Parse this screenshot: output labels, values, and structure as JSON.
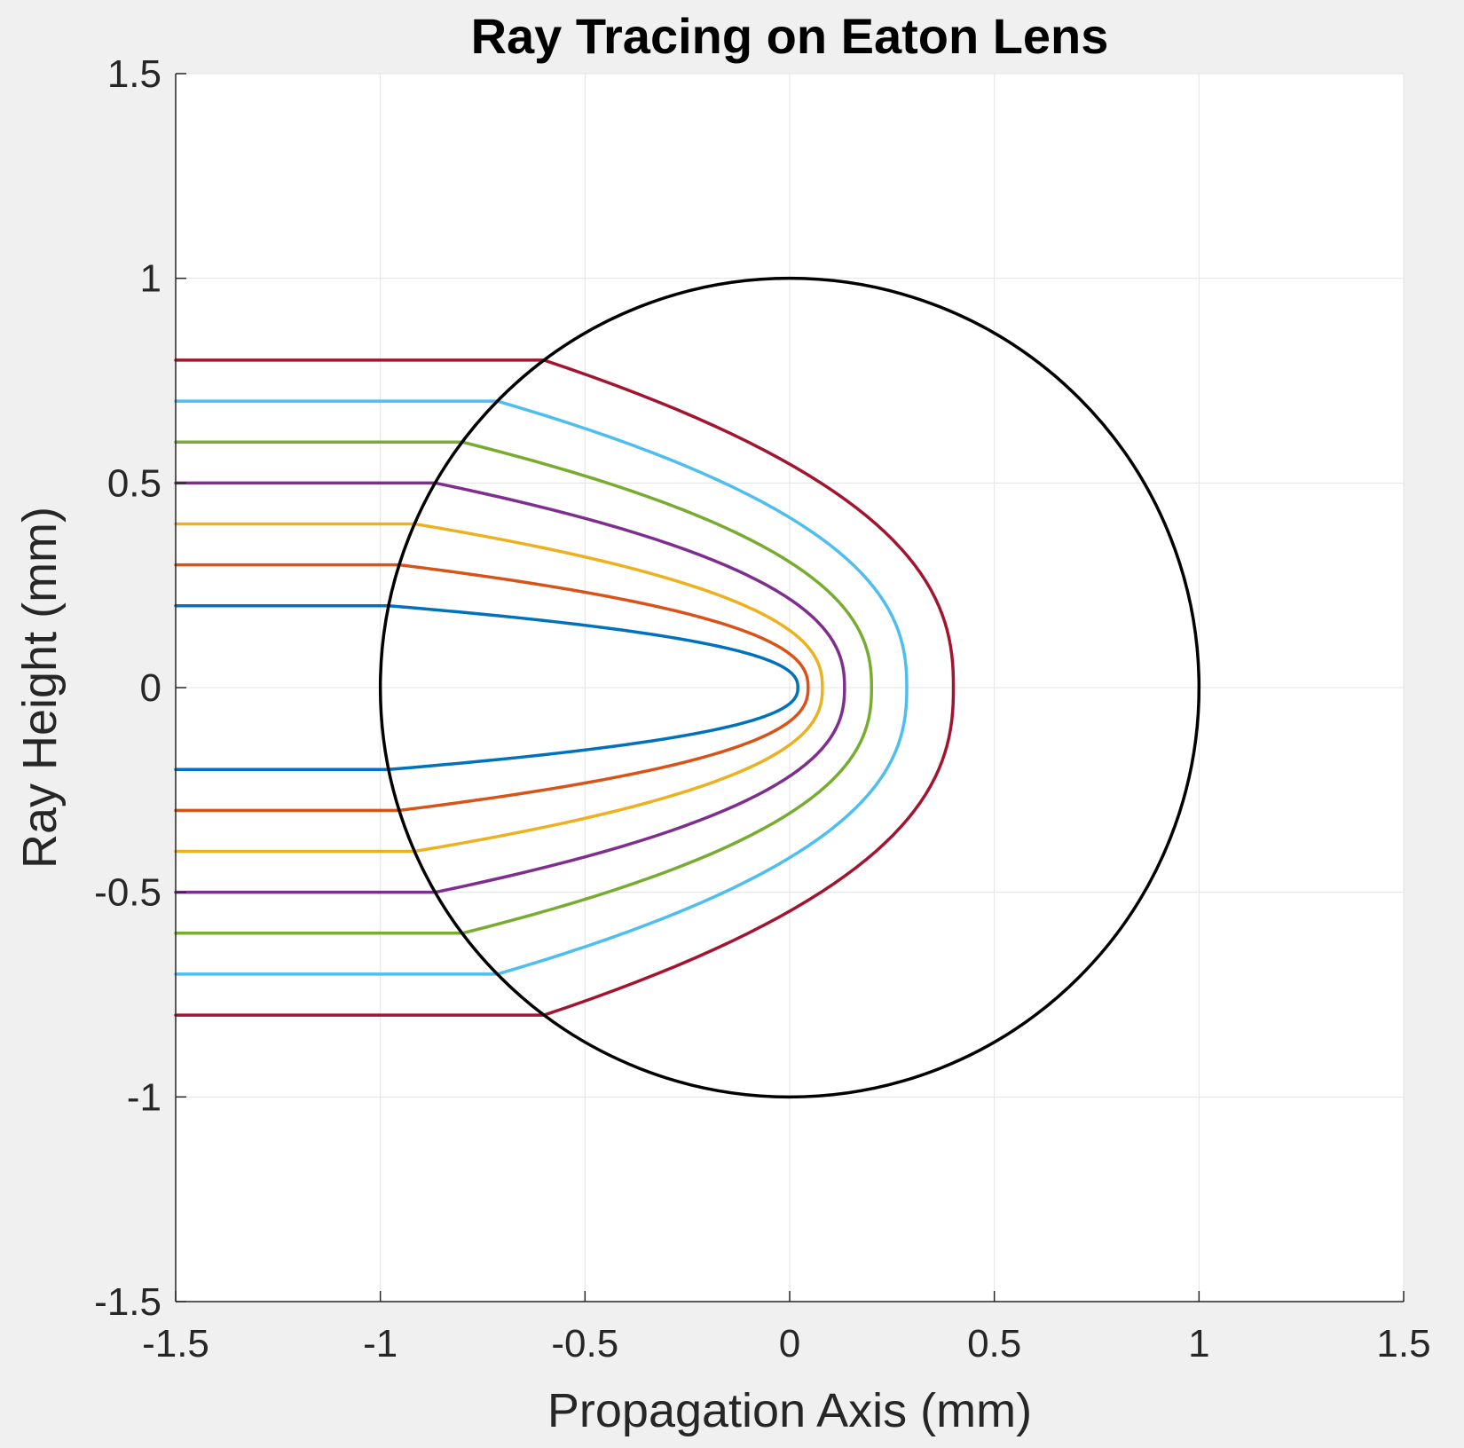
{
  "chart_data": {
    "type": "line",
    "title": "Ray Tracing on Eaton Lens",
    "xlabel": "Propagation Axis (mm)",
    "ylabel": "Ray Height (mm)",
    "xlim": [
      -1.5,
      1.5
    ],
    "ylim": [
      -1.5,
      1.5
    ],
    "xticks": [
      -1.5,
      -1,
      -0.5,
      0,
      0.5,
      1,
      1.5
    ],
    "xtick_labels": [
      "-1.5",
      "-1",
      "-0.5",
      "0",
      "0.5",
      "1",
      "1.5"
    ],
    "yticks": [
      -1.5,
      -1,
      -0.5,
      0,
      0.5,
      1,
      1.5
    ],
    "ytick_labels": [
      "-1.5",
      "-1",
      "-0.5",
      "0",
      "0.5",
      "1",
      "1.5"
    ],
    "grid": true,
    "legend": "none",
    "lens_boundary": {
      "center": [
        0,
        0
      ],
      "radius": 1,
      "color": "#000000"
    },
    "series": [
      {
        "ray_height": 0.2,
        "turning_point_x": 0.02,
        "color": "#0072BD"
      },
      {
        "ray_height": 0.3,
        "turning_point_x": 0.045,
        "color": "#D95319"
      },
      {
        "ray_height": 0.4,
        "turning_point_x": 0.08,
        "color": "#EDB120"
      },
      {
        "ray_height": 0.5,
        "turning_point_x": 0.134,
        "color": "#7E2F8E"
      },
      {
        "ray_height": 0.6,
        "turning_point_x": 0.2,
        "color": "#77AC30"
      },
      {
        "ray_height": 0.7,
        "turning_point_x": 0.286,
        "color": "#4DBEEE"
      },
      {
        "ray_height": 0.8,
        "turning_point_x": 0.4,
        "color": "#A2142F"
      }
    ]
  }
}
